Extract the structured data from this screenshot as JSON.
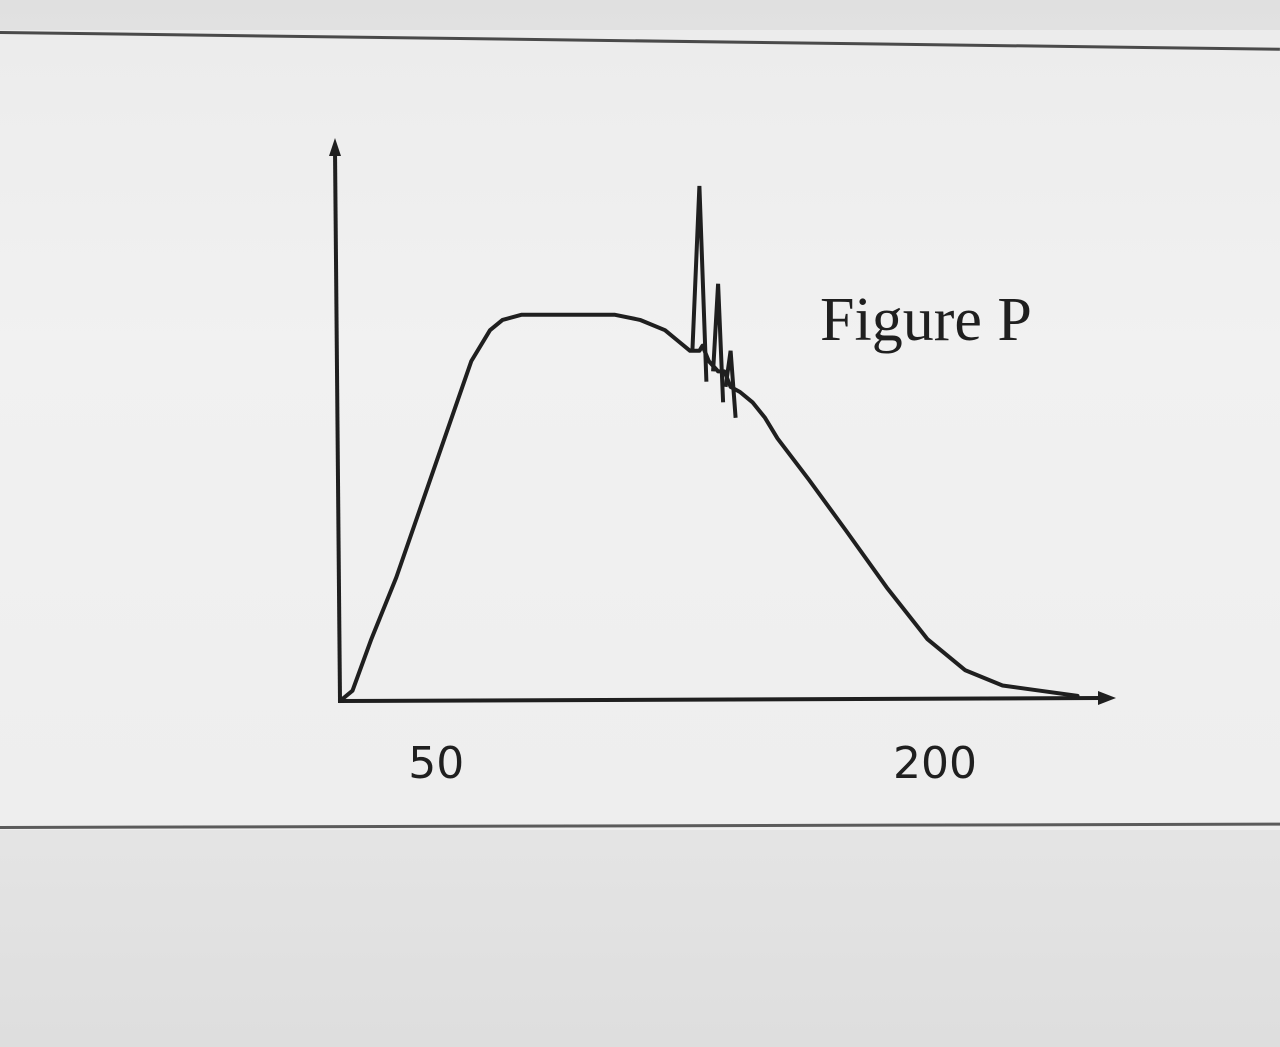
{
  "chart_data": {
    "type": "line",
    "title": "Figure P",
    "xlabel": "",
    "ylabel": "",
    "xlim": [
      0,
      240
    ],
    "ylim": [
      0,
      100
    ],
    "grid": false,
    "x_tick_labels": [
      "50",
      "200"
    ],
    "x_ticks": [
      50,
      200
    ],
    "line_color": "#1f1f1f",
    "series": [
      {
        "x": [
          0,
          4,
          10,
          18,
          26,
          34,
          42,
          48,
          52,
          58,
          65,
          72,
          80,
          88,
          96,
          104,
          108,
          112,
          115,
          116,
          118,
          121,
          123,
          125,
          128,
          130,
          132,
          136,
          140,
          150,
          162,
          175,
          188,
          200,
          212,
          224,
          236
        ],
        "y": [
          0,
          2,
          12,
          24,
          38,
          52,
          66,
          72,
          74,
          75,
          75,
          75,
          75,
          75,
          74,
          72,
          70,
          68,
          68,
          69,
          66,
          64,
          64,
          61,
          60,
          59,
          58,
          55,
          51,
          43,
          33,
          22,
          12,
          6,
          3,
          2,
          1
        ]
      }
    ],
    "spikes": [
      {
        "x": 115,
        "y": 100
      },
      {
        "x": 121,
        "y": 81
      },
      {
        "x": 125,
        "y": 68
      }
    ]
  }
}
